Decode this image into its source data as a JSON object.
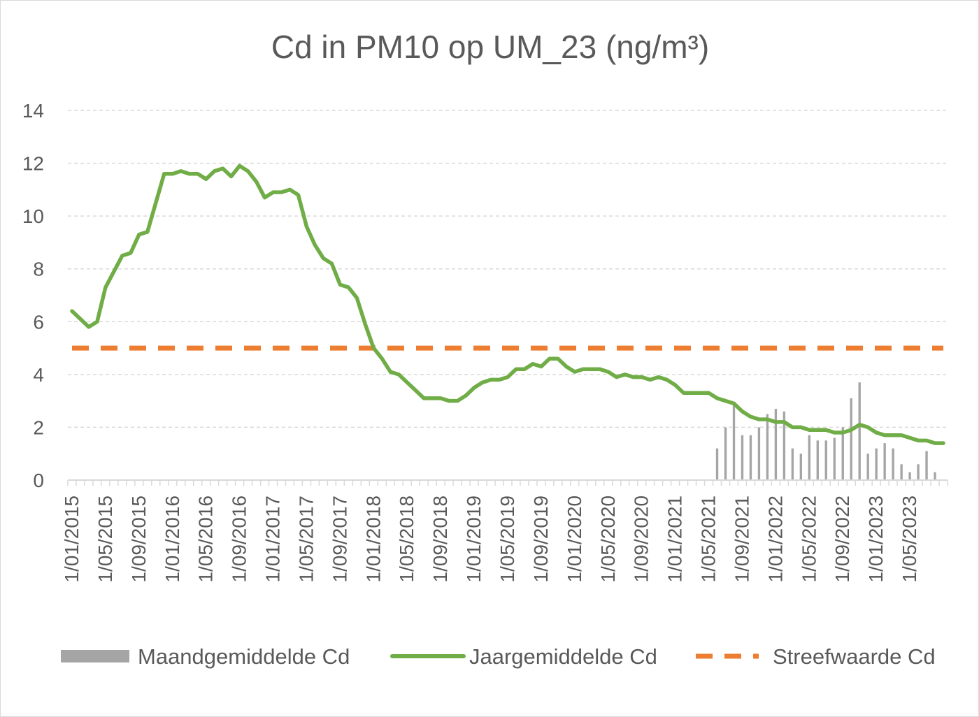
{
  "chart_data": {
    "type": "line",
    "title": "Cd in PM10 op UM_23 (ng/m³)",
    "xlabel": "",
    "ylabel": "",
    "ylim": [
      0,
      14
    ],
    "yticks": [
      0,
      2,
      4,
      6,
      8,
      10,
      12,
      14
    ],
    "grid": "horizontal dashed",
    "legend_position": "bottom",
    "x_tick_labels": [
      "1/01/2015",
      "1/05/2015",
      "1/09/2015",
      "1/01/2016",
      "1/05/2016",
      "1/09/2016",
      "1/01/2017",
      "1/05/2017",
      "1/09/2017",
      "1/01/2018",
      "1/05/2018",
      "1/09/2018",
      "1/01/2019",
      "1/05/2019",
      "1/09/2019",
      "1/01/2020",
      "1/05/2020",
      "1/09/2020",
      "1/01/2021",
      "1/05/2021",
      "1/09/2021",
      "1/01/2022",
      "1/05/2022",
      "1/09/2022",
      "1/01/2023",
      "1/05/2023"
    ],
    "x_start": "2015-01",
    "x_end": "2023-09",
    "series": [
      {
        "name": "Maandgemiddelde Cd",
        "kind": "bar",
        "color": "#a5a5a5",
        "x": [
          "2021-06",
          "2021-07",
          "2021-08",
          "2021-09",
          "2021-10",
          "2021-11",
          "2021-12",
          "2022-01",
          "2022-02",
          "2022-03",
          "2022-04",
          "2022-05",
          "2022-06",
          "2022-07",
          "2022-08",
          "2022-09",
          "2022-10",
          "2022-11",
          "2022-12",
          "2023-01",
          "2023-02",
          "2023-03",
          "2023-04",
          "2023-05",
          "2023-06",
          "2023-07",
          "2023-08",
          "2023-09"
        ],
        "values": [
          1.2,
          2.0,
          2.9,
          1.7,
          1.7,
          2.0,
          2.5,
          2.7,
          2.6,
          1.2,
          1.0,
          1.7,
          1.5,
          1.5,
          1.6,
          2.0,
          3.1,
          3.7,
          1.0,
          1.2,
          1.4,
          1.2,
          0.6,
          0.3,
          0.6,
          1.1,
          0.3,
          0.0
        ]
      },
      {
        "name": "Jaargemiddelde Cd",
        "kind": "line",
        "color": "#70ad47",
        "x": [
          "2015-01",
          "2015-02",
          "2015-03",
          "2015-04",
          "2015-05",
          "2015-06",
          "2015-07",
          "2015-08",
          "2015-09",
          "2015-10",
          "2015-11",
          "2015-12",
          "2016-01",
          "2016-02",
          "2016-03",
          "2016-04",
          "2016-05",
          "2016-06",
          "2016-07",
          "2016-08",
          "2016-09",
          "2016-10",
          "2016-11",
          "2016-12",
          "2017-01",
          "2017-02",
          "2017-03",
          "2017-04",
          "2017-05",
          "2017-06",
          "2017-07",
          "2017-08",
          "2017-09",
          "2017-10",
          "2017-11",
          "2017-12",
          "2018-01",
          "2018-02",
          "2018-03",
          "2018-04",
          "2018-05",
          "2018-06",
          "2018-07",
          "2018-08",
          "2018-09",
          "2018-10",
          "2018-11",
          "2018-12",
          "2019-01",
          "2019-02",
          "2019-03",
          "2019-04",
          "2019-05",
          "2019-06",
          "2019-07",
          "2019-08",
          "2019-09",
          "2019-10",
          "2019-11",
          "2019-12",
          "2020-01",
          "2020-02",
          "2020-03",
          "2020-04",
          "2020-05",
          "2020-06",
          "2020-07",
          "2020-08",
          "2020-09",
          "2020-10",
          "2020-11",
          "2020-12",
          "2021-01",
          "2021-02",
          "2021-03",
          "2021-04",
          "2021-05",
          "2021-06",
          "2021-07",
          "2021-08",
          "2021-09",
          "2021-10",
          "2021-11",
          "2021-12",
          "2022-01",
          "2022-02",
          "2022-03",
          "2022-04",
          "2022-05",
          "2022-06",
          "2022-07",
          "2022-08",
          "2022-09",
          "2022-10",
          "2022-11",
          "2022-12",
          "2023-01",
          "2023-02",
          "2023-03",
          "2023-04",
          "2023-05",
          "2023-06",
          "2023-07",
          "2023-08",
          "2023-09"
        ],
        "values": [
          6.4,
          6.1,
          5.8,
          6.0,
          7.3,
          7.9,
          8.5,
          8.6,
          9.3,
          9.4,
          10.5,
          11.6,
          11.6,
          11.7,
          11.6,
          11.6,
          11.4,
          11.7,
          11.8,
          11.5,
          11.9,
          11.7,
          11.3,
          10.7,
          10.9,
          10.9,
          11.0,
          10.8,
          9.6,
          8.9,
          8.4,
          8.2,
          7.4,
          7.3,
          6.9,
          5.9,
          5.0,
          4.6,
          4.1,
          4.0,
          3.7,
          3.4,
          3.1,
          3.1,
          3.1,
          3.0,
          3.0,
          3.2,
          3.5,
          3.7,
          3.8,
          3.8,
          3.9,
          4.2,
          4.2,
          4.4,
          4.3,
          4.6,
          4.6,
          4.3,
          4.1,
          4.2,
          4.2,
          4.2,
          4.1,
          3.9,
          4.0,
          3.9,
          3.9,
          3.8,
          3.9,
          3.8,
          3.6,
          3.3,
          3.3,
          3.3,
          3.3,
          3.1,
          3.0,
          2.9,
          2.6,
          2.4,
          2.3,
          2.3,
          2.2,
          2.2,
          2.0,
          2.0,
          1.9,
          1.9,
          1.9,
          1.8,
          1.8,
          1.9,
          2.1,
          2.0,
          1.8,
          1.7,
          1.7,
          1.7,
          1.6,
          1.5,
          1.5,
          1.4,
          1.4
        ]
      },
      {
        "name": "Streefwaarde Cd",
        "kind": "line",
        "style": "dashed",
        "color": "#ed7d31",
        "x": [
          "2015-01",
          "2023-09"
        ],
        "values": [
          5,
          5
        ]
      }
    ]
  }
}
